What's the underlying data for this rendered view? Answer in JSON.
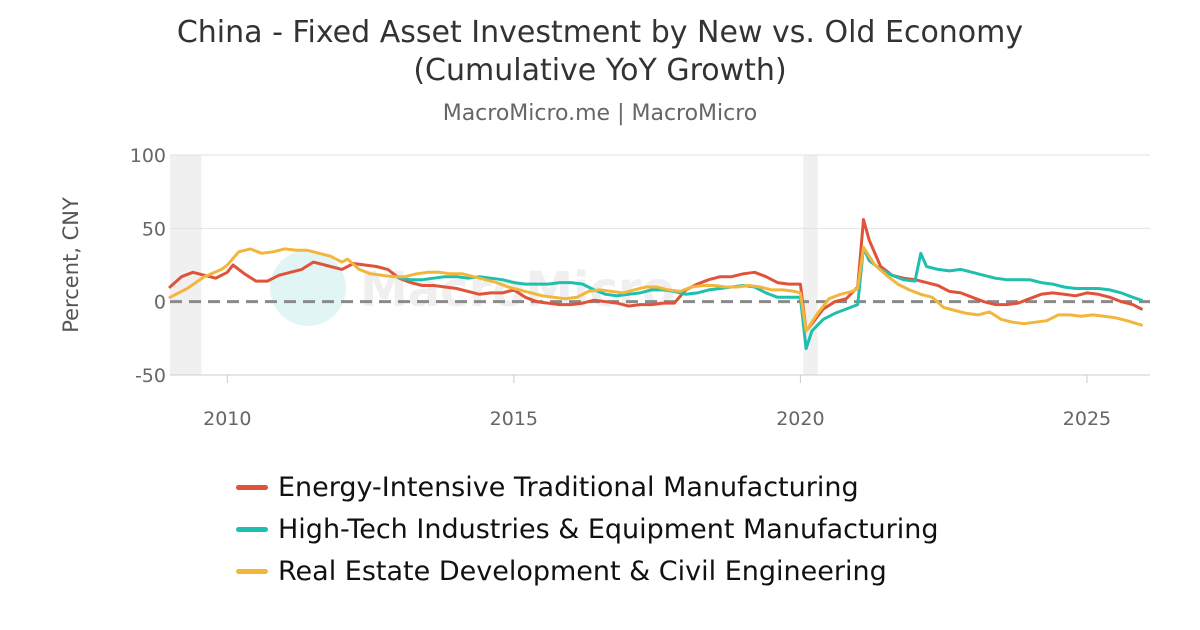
{
  "chart_data": {
    "type": "line",
    "title": "China - Fixed Asset Investment by New vs. Old Economy",
    "title_line2": "(Cumulative YoY Growth)",
    "subtitle": "MacroMicro.me | MacroMicro",
    "watermark": "MacroMicro",
    "ylabel": "Percent, CNY",
    "ylim": [
      -50,
      100
    ],
    "yticks": [
      "100",
      "50",
      "0",
      "-50"
    ],
    "xlim": [
      2009.0,
      2026.1
    ],
    "xticks": [
      "2010",
      "2015",
      "2020",
      "2025"
    ],
    "grid": true,
    "legend_position": "bottom",
    "zero_line": "dashed",
    "recessions": [
      [
        2009.0,
        2009.55
      ],
      [
        2020.05,
        2020.3
      ]
    ],
    "series": [
      {
        "name": "Energy-Intensive Traditional Manufacturing",
        "color": "#e0533b",
        "x": [
          2009.0,
          2009.2,
          2009.4,
          2009.6,
          2009.8,
          2010.0,
          2010.1,
          2010.3,
          2010.5,
          2010.7,
          2010.9,
          2011.1,
          2011.3,
          2011.5,
          2011.6,
          2011.8,
          2012.0,
          2012.2,
          2012.4,
          2012.6,
          2012.8,
          2013.0,
          2013.2,
          2013.4,
          2013.6,
          2013.8,
          2014.0,
          2014.2,
          2014.4,
          2014.6,
          2014.8,
          2015.0,
          2015.2,
          2015.4,
          2015.6,
          2015.8,
          2016.0,
          2016.2,
          2016.4,
          2016.6,
          2016.8,
          2017.0,
          2017.2,
          2017.4,
          2017.6,
          2017.8,
          2018.0,
          2018.2,
          2018.4,
          2018.6,
          2018.8,
          2019.0,
          2019.2,
          2019.4,
          2019.6,
          2019.8,
          2020.0,
          2020.1,
          2020.2,
          2020.4,
          2020.6,
          2020.8,
          2021.0,
          2021.1,
          2021.2,
          2021.4,
          2021.6,
          2021.8,
          2022.0,
          2022.2,
          2022.4,
          2022.6,
          2022.8,
          2023.0,
          2023.2,
          2023.4,
          2023.6,
          2023.8,
          2024.0,
          2024.2,
          2024.4,
          2024.6,
          2024.8,
          2025.0,
          2025.2,
          2025.4,
          2025.6,
          2025.8,
          2025.95
        ],
        "values": [
          10,
          17,
          20,
          18,
          16,
          20,
          25,
          19,
          14,
          14,
          18,
          20,
          22,
          27,
          26,
          24,
          22,
          26,
          25,
          24,
          22,
          16,
          13,
          11,
          11,
          10,
          9,
          7,
          5,
          6,
          6,
          8,
          3,
          0,
          -1,
          -2,
          -2,
          -1,
          1,
          0,
          -1,
          -3,
          -2,
          -2,
          -1,
          -1,
          8,
          12,
          15,
          17,
          17,
          19,
          20,
          17,
          13,
          12,
          12,
          -20,
          -15,
          -5,
          0,
          2,
          10,
          56,
          42,
          24,
          18,
          16,
          15,
          13,
          11,
          7,
          6,
          3,
          0,
          -2,
          -2,
          -1,
          2,
          5,
          6,
          5,
          4,
          6,
          5,
          3,
          0,
          -2,
          -5
        ]
      },
      {
        "name": "High-Tech Industries & Equipment Manufacturing",
        "color": "#1fbfae",
        "x": [
          2013.0,
          2013.2,
          2013.4,
          2013.6,
          2013.8,
          2014.0,
          2014.2,
          2014.4,
          2014.6,
          2014.8,
          2015.0,
          2015.2,
          2015.4,
          2015.6,
          2015.8,
          2016.0,
          2016.2,
          2016.4,
          2016.6,
          2016.8,
          2017.0,
          2017.2,
          2017.4,
          2017.6,
          2017.8,
          2018.0,
          2018.2,
          2018.4,
          2018.6,
          2018.8,
          2019.0,
          2019.2,
          2019.4,
          2019.6,
          2019.8,
          2020.0,
          2020.1,
          2020.2,
          2020.4,
          2020.6,
          2020.8,
          2021.0,
          2021.1,
          2021.2,
          2021.4,
          2021.6,
          2021.8,
          2022.0,
          2022.1,
          2022.2,
          2022.4,
          2022.6,
          2022.8,
          2023.0,
          2023.2,
          2023.4,
          2023.6,
          2023.8,
          2024.0,
          2024.2,
          2024.4,
          2024.6,
          2024.8,
          2025.0,
          2025.2,
          2025.4,
          2025.6,
          2025.8,
          2025.95
        ],
        "values": [
          16,
          15,
          15,
          16,
          17,
          17,
          16,
          17,
          16,
          15,
          13,
          12,
          12,
          12,
          13,
          13,
          12,
          8,
          5,
          4,
          5,
          6,
          8,
          8,
          7,
          5,
          6,
          8,
          9,
          10,
          11,
          10,
          6,
          3,
          3,
          3,
          -32,
          -20,
          -12,
          -8,
          -5,
          -2,
          37,
          28,
          22,
          18,
          15,
          14,
          33,
          24,
          22,
          21,
          22,
          20,
          18,
          16,
          15,
          15,
          15,
          13,
          12,
          10,
          9,
          9,
          9,
          8,
          6,
          3,
          1
        ]
      },
      {
        "name": "Real Estate Development & Civil Engineering",
        "color": "#f2b63c",
        "x": [
          2009.0,
          2009.3,
          2009.6,
          2009.9,
          2010.0,
          2010.2,
          2010.4,
          2010.6,
          2010.8,
          2011.0,
          2011.2,
          2011.4,
          2011.6,
          2011.8,
          2012.0,
          2012.1,
          2012.3,
          2012.5,
          2012.7,
          2012.9,
          2013.1,
          2013.3,
          2013.5,
          2013.7,
          2013.9,
          2014.1,
          2014.3,
          2014.5,
          2014.7,
          2014.9,
          2015.1,
          2015.3,
          2015.5,
          2015.7,
          2015.9,
          2016.1,
          2016.3,
          2016.5,
          2016.7,
          2016.9,
          2017.1,
          2017.3,
          2017.5,
          2017.7,
          2017.9,
          2018.1,
          2018.3,
          2018.5,
          2018.7,
          2018.9,
          2019.1,
          2019.3,
          2019.5,
          2019.7,
          2019.9,
          2020.0,
          2020.1,
          2020.3,
          2020.5,
          2020.7,
          2020.9,
          2021.0,
          2021.1,
          2021.3,
          2021.5,
          2021.7,
          2021.9,
          2022.1,
          2022.3,
          2022.5,
          2022.7,
          2022.9,
          2023.1,
          2023.3,
          2023.5,
          2023.7,
          2023.9,
          2024.1,
          2024.3,
          2024.5,
          2024.7,
          2024.9,
          2025.1,
          2025.3,
          2025.5,
          2025.7,
          2025.95
        ],
        "values": [
          3,
          9,
          17,
          22,
          25,
          34,
          36,
          33,
          34,
          36,
          35,
          35,
          33,
          31,
          27,
          29,
          22,
          19,
          18,
          17,
          17,
          19,
          20,
          20,
          19,
          19,
          17,
          15,
          13,
          10,
          8,
          6,
          4,
          3,
          2,
          3,
          7,
          8,
          7,
          6,
          8,
          10,
          10,
          8,
          7,
          10,
          11,
          11,
          10,
          10,
          11,
          10,
          8,
          8,
          7,
          6,
          -20,
          -8,
          2,
          5,
          7,
          9,
          37,
          25,
          18,
          12,
          8,
          5,
          3,
          -4,
          -6,
          -8,
          -9,
          -7,
          -12,
          -14,
          -15,
          -14,
          -13,
          -9,
          -9,
          -10,
          -9,
          -10,
          -11,
          -13,
          -16
        ]
      }
    ]
  }
}
